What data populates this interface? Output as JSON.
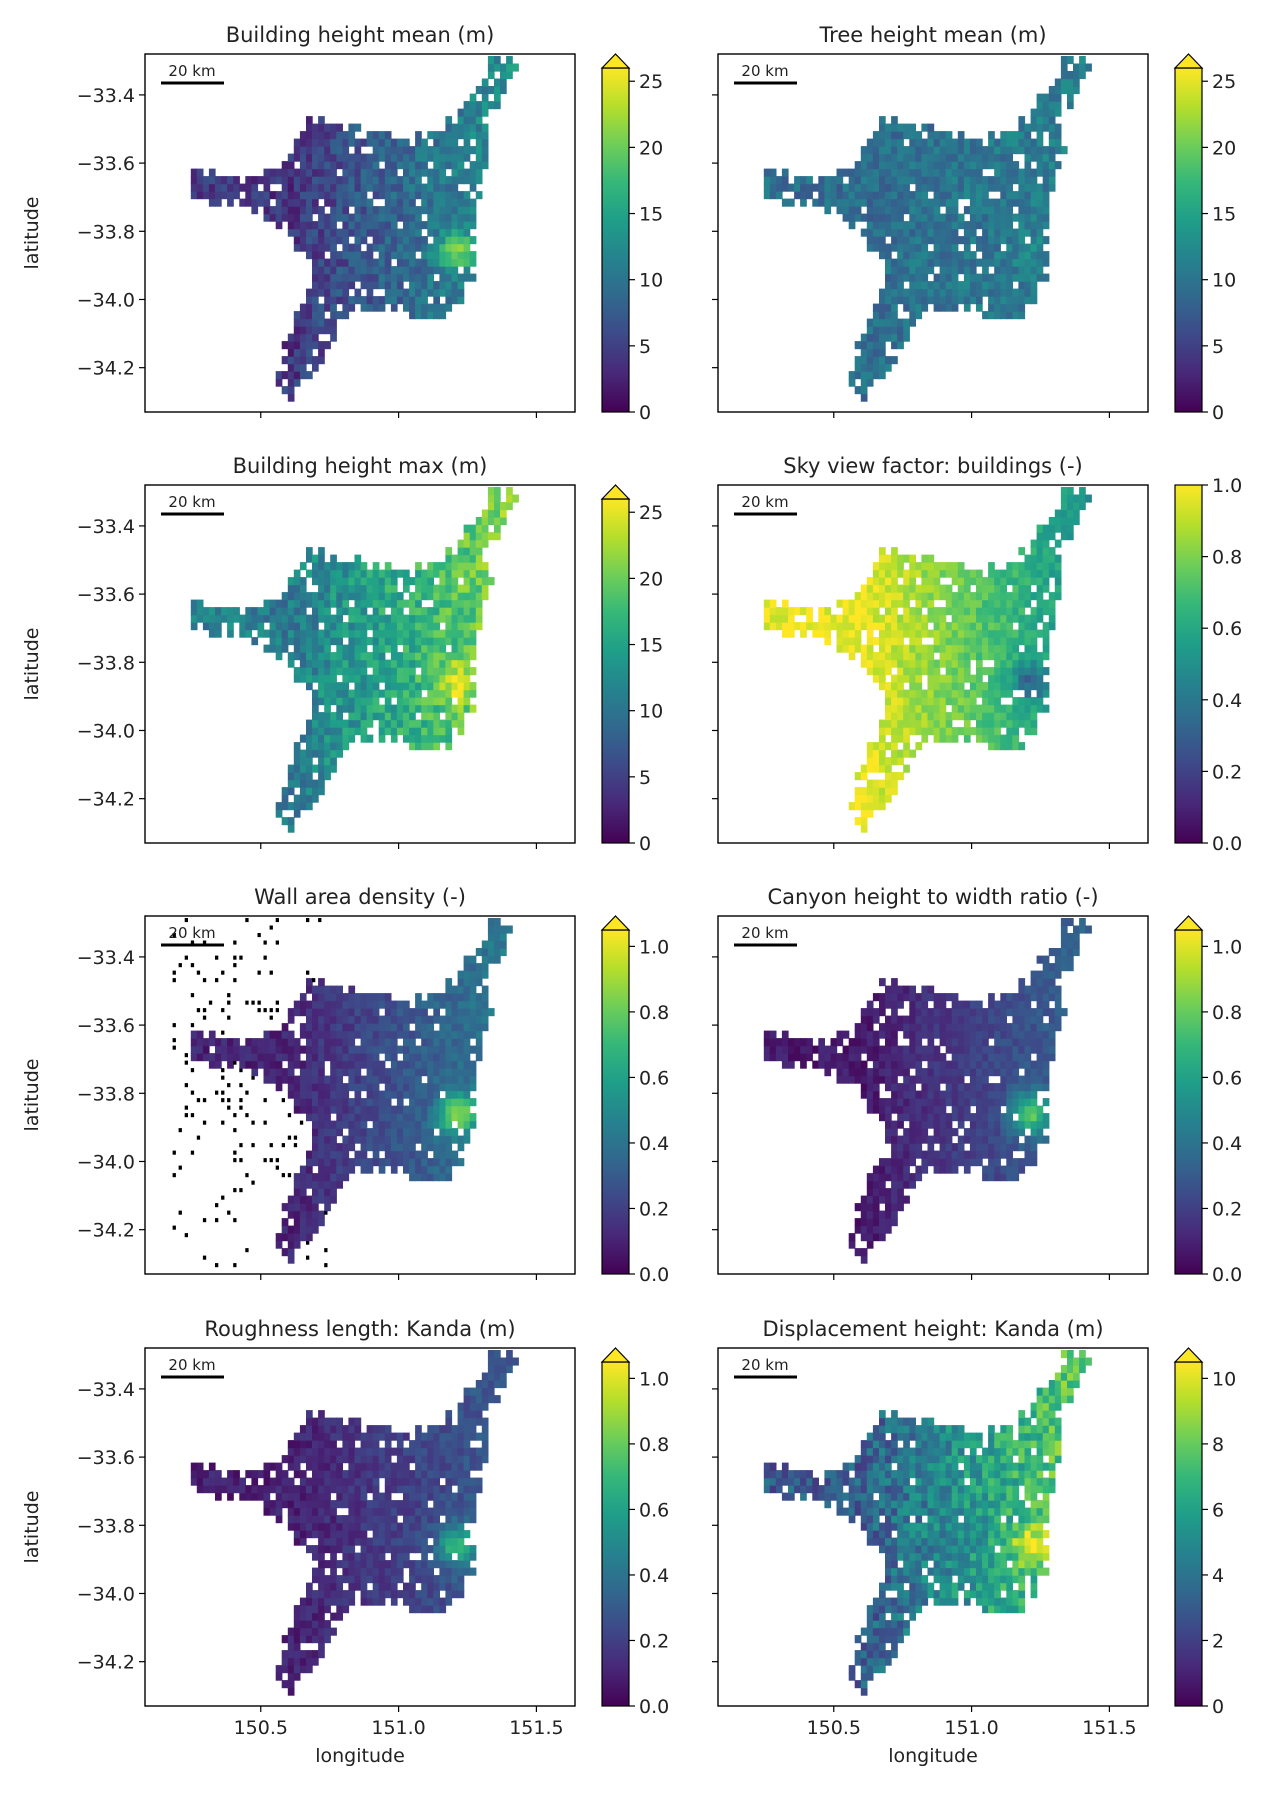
{
  "figure": {
    "shared_xlabel": "longitude",
    "shared_ylabel": "latitude",
    "scalebar_label": "20 km",
    "x_ticks": [
      150.5,
      151.0,
      151.5
    ],
    "x_tick_labels": [
      "150.5",
      "151.0",
      "151.5"
    ],
    "y_ticks": [
      -33.4,
      -33.6,
      -33.8,
      -34.0,
      -34.2
    ],
    "y_tick_labels": [
      "−33.4",
      "−33.6",
      "−33.8",
      "−34.0",
      "−34.2"
    ],
    "xlim": [
      150.08,
      151.64
    ],
    "ylim": [
      -34.33,
      -33.28
    ],
    "colormap": "viridis",
    "colormap_stops": [
      "#440154",
      "#482878",
      "#3e4989",
      "#31688e",
      "#26828e",
      "#1f9e89",
      "#35b779",
      "#6ece58",
      "#b5de2b",
      "#fde725"
    ],
    "outline_color": "#000000"
  },
  "chart_data": [
    {
      "type": "heatmap",
      "title": "Building height mean (m)",
      "colorbar": {
        "ticks": [
          0,
          5,
          10,
          15,
          20,
          25
        ],
        "tick_labels": [
          "0",
          "5",
          "10",
          "15",
          "20",
          "25"
        ],
        "vmin": 0,
        "vmax": 26,
        "extend_max": true
      },
      "field": {
        "base": 0.16,
        "gradient": 0.3,
        "hotspot": 0.35,
        "noise": 0.1
      }
    },
    {
      "type": "heatmap",
      "title": "Tree height mean (m)",
      "colorbar": {
        "ticks": [
          0,
          5,
          10,
          15,
          20,
          25
        ],
        "tick_labels": [
          "0",
          "5",
          "10",
          "15",
          "20",
          "25"
        ],
        "vmin": 0,
        "vmax": 26,
        "extend_max": true
      },
      "field": {
        "base": 0.36,
        "gradient": 0.06,
        "hotspot": 0.05,
        "noise": 0.09
      }
    },
    {
      "type": "heatmap",
      "title": "Building height max (m)",
      "colorbar": {
        "ticks": [
          0,
          5,
          10,
          15,
          20,
          25
        ],
        "tick_labels": [
          "0",
          "5",
          "10",
          "15",
          "20",
          "25"
        ],
        "vmin": 0,
        "vmax": 26,
        "extend_max": true
      },
      "field": {
        "base": 0.42,
        "gradient": 0.35,
        "hotspot": 0.25,
        "noise": 0.12
      }
    },
    {
      "type": "heatmap",
      "title": "Sky view factor: buildings (-)",
      "colorbar": {
        "ticks": [
          0.0,
          0.2,
          0.4,
          0.6,
          0.8,
          1.0
        ],
        "tick_labels": [
          "0.0",
          "0.2",
          "0.4",
          "0.6",
          "0.8",
          "1.0"
        ],
        "vmin": 0,
        "vmax": 1,
        "extend_max": false
      },
      "field": {
        "base": 0.97,
        "gradient": -0.4,
        "hotspot": -0.3,
        "noise": 0.07
      }
    },
    {
      "type": "heatmap",
      "title": "Wall area density (-)",
      "colorbar": {
        "ticks": [
          0.0,
          0.2,
          0.4,
          0.6,
          0.8,
          1.0
        ],
        "tick_labels": [
          "0.0",
          "0.2",
          "0.4",
          "0.6",
          "0.8",
          "1.0"
        ],
        "vmin": 0,
        "vmax": 1.05,
        "extend_max": true
      },
      "field": {
        "base": 0.1,
        "gradient": 0.28,
        "hotspot": 0.5,
        "noise": 0.06
      },
      "nodata_speckle": true
    },
    {
      "type": "heatmap",
      "title": "Canyon height to width ratio (-)",
      "colorbar": {
        "ticks": [
          0.0,
          0.2,
          0.4,
          0.6,
          0.8,
          1.0
        ],
        "tick_labels": [
          "0.0",
          "0.2",
          "0.4",
          "0.6",
          "0.8",
          "1.0"
        ],
        "vmin": 0,
        "vmax": 1.05,
        "extend_max": true
      },
      "field": {
        "base": 0.07,
        "gradient": 0.22,
        "hotspot": 0.5,
        "noise": 0.05
      }
    },
    {
      "type": "heatmap",
      "title": "Roughness length: Kanda (m)",
      "colorbar": {
        "ticks": [
          0.0,
          0.2,
          0.4,
          0.6,
          0.8,
          1.0
        ],
        "tick_labels": [
          "0.0",
          "0.2",
          "0.4",
          "0.6",
          "0.8",
          "1.0"
        ],
        "vmin": 0,
        "vmax": 1.05,
        "extend_max": true
      },
      "field": {
        "base": 0.09,
        "gradient": 0.18,
        "hotspot": 0.45,
        "noise": 0.06
      }
    },
    {
      "type": "heatmap",
      "title": "Displacement height: Kanda (m)",
      "colorbar": {
        "ticks": [
          0,
          2,
          4,
          6,
          8,
          10
        ],
        "tick_labels": [
          "0",
          "2",
          "4",
          "6",
          "8",
          "10"
        ],
        "vmin": 0,
        "vmax": 10.5,
        "extend_max": true
      },
      "field": {
        "base": 0.3,
        "gradient": 0.42,
        "hotspot": 0.3,
        "noise": 0.14
      }
    }
  ]
}
